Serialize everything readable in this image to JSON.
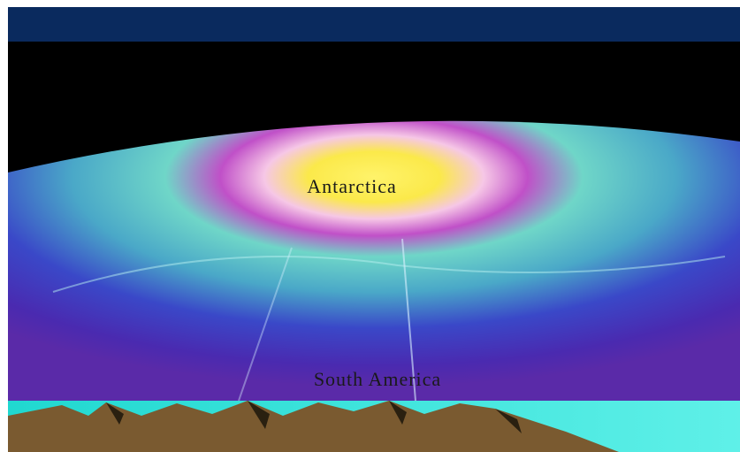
{
  "labels": {
    "antarctica": "Antarctica",
    "south_america": "South America"
  }
}
